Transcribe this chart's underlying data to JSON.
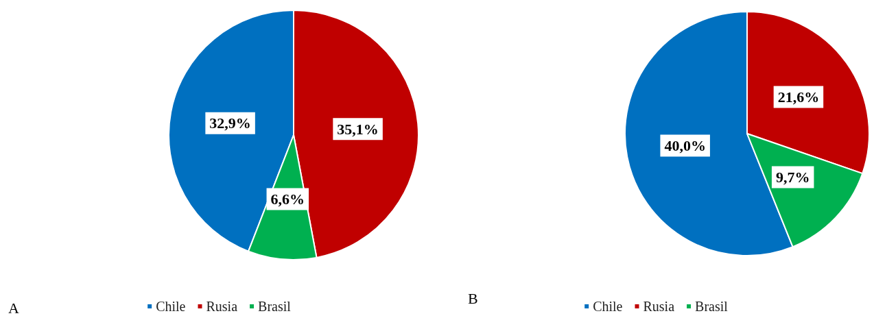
{
  "chart_data": [
    {
      "type": "pie",
      "categories": [
        "Chile",
        "Rusia",
        "Brasil"
      ],
      "values": [
        32.9,
        35.1,
        6.6
      ],
      "colors": [
        "#0070c0",
        "#c00000",
        "#00b050"
      ],
      "value_labels": [
        "32,9%",
        "35,1%",
        "6,6%"
      ],
      "legend": "bottom",
      "annotations": [
        "A"
      ]
    },
    {
      "type": "pie",
      "categories": [
        "Chile",
        "Rusia",
        "Brasil"
      ],
      "values": [
        40.0,
        21.6,
        9.7
      ],
      "colors": [
        "#0070c0",
        "#c00000",
        "#00b050"
      ],
      "value_labels": [
        "40,0%",
        "21,6%",
        "9,7%"
      ],
      "legend": "bottom",
      "annotations": [
        "B"
      ]
    }
  ]
}
